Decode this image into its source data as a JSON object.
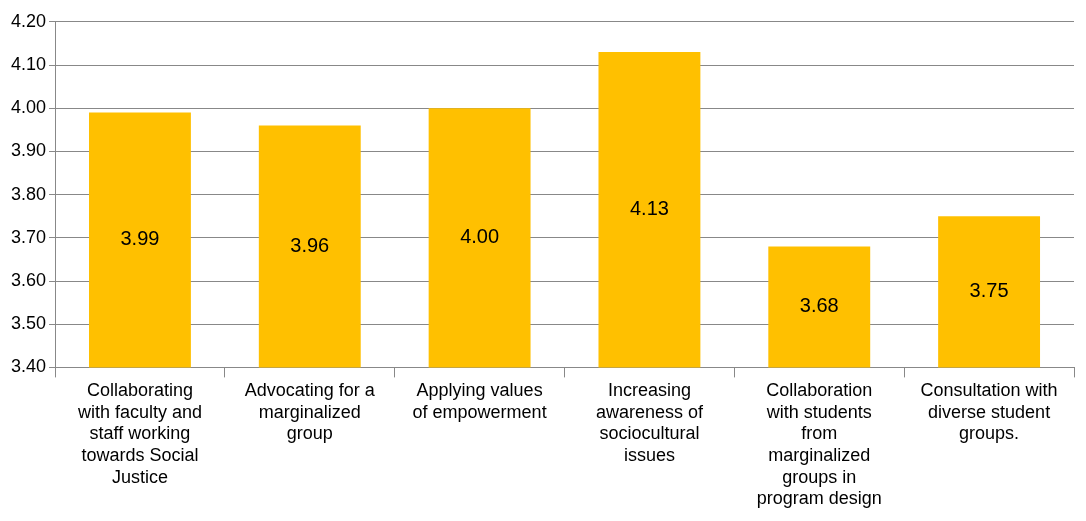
{
  "chart_data": {
    "type": "bar",
    "categories": [
      "Collaborating with faculty and staff working towards Social Justice",
      "Advocating for a marginalized group",
      "Applying values of empowerment",
      "Increasing awareness of sociocultural issues",
      "Collaboration with students from marginalized groups in program design",
      "Consultation with diverse student groups."
    ],
    "values": [
      3.99,
      3.96,
      4.0,
      4.13,
      3.68,
      3.75
    ],
    "value_labels": [
      "3.99",
      "3.96",
      "4.00",
      "4.13",
      "3.68",
      "3.75"
    ],
    "color": "#ffc000",
    "ylim": [
      3.4,
      4.2
    ],
    "yticks": [
      {
        "value": 3.4,
        "label": "3.40"
      },
      {
        "value": 3.5,
        "label": "3.50"
      },
      {
        "value": 3.6,
        "label": "3.60"
      },
      {
        "value": 3.7,
        "label": "3.70"
      },
      {
        "value": 3.8,
        "label": "3.80"
      },
      {
        "value": 3.9,
        "label": "3.90"
      },
      {
        "value": 4.0,
        "label": "4.00"
      },
      {
        "value": 4.1,
        "label": "4.10"
      },
      {
        "value": 4.2,
        "label": "4.20"
      }
    ],
    "grid": "y",
    "legend": false
  }
}
